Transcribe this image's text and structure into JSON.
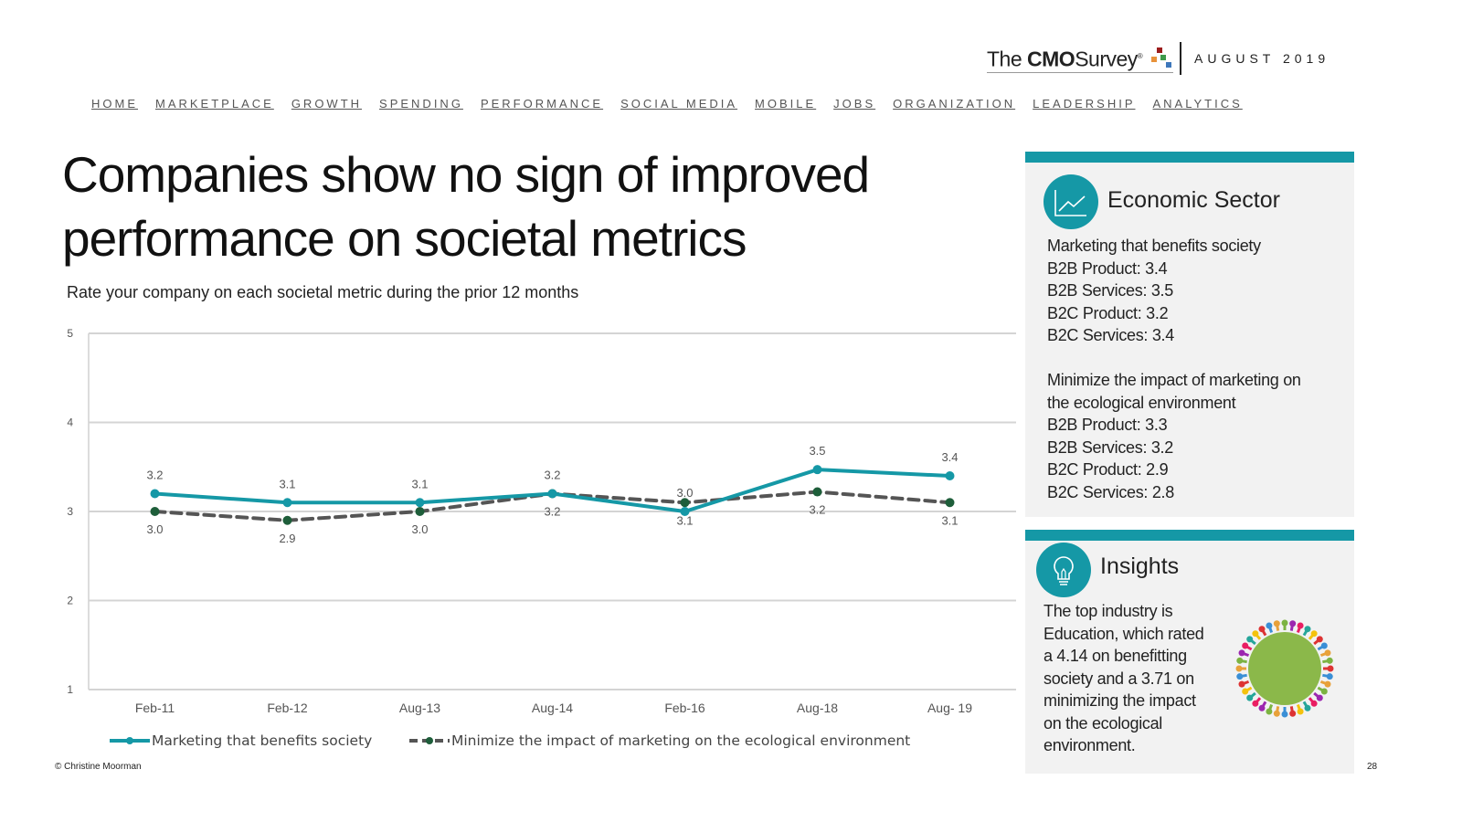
{
  "header": {
    "logo": {
      "the": "The",
      "cmo": "CMO",
      "survey": "Survey",
      "registered": "®"
    },
    "date": "AUGUST 2019",
    "nav": [
      "HOME",
      "MARKETPLACE",
      "GROWTH",
      "SPENDING",
      "PERFORMANCE",
      "SOCIAL MEDIA",
      "MOBILE",
      "JOBS",
      "ORGANIZATION",
      "LEADERSHIP",
      "ANALYTICS"
    ]
  },
  "title": "Companies show no sign of improved performance on societal metrics",
  "subtitle": "Rate your company on each societal metric during the prior 12 months",
  "chart_data": {
    "type": "line",
    "categories": [
      "Feb-11",
      "Feb-12",
      "Aug-13",
      "Aug-14",
      "Feb-16",
      "Aug-18",
      "Aug- 19"
    ],
    "ylim": [
      1,
      5
    ],
    "yticks": [
      "1",
      "2",
      "3",
      "4",
      "5"
    ],
    "grid": true,
    "legend": "bottom",
    "series": [
      {
        "name": "Marketing that benefits society",
        "color": "#1598a6",
        "style": "solid",
        "values": [
          3.2,
          3.1,
          3.1,
          3.2,
          3.0,
          3.47,
          3.4
        ],
        "labels": [
          "3.2",
          "3.1",
          "3.1",
          "3.2",
          "3.0",
          "3.5",
          "3.4"
        ]
      },
      {
        "name": "Minimize the impact of marketing on the ecological environment",
        "color": "#555555",
        "marker_color": "#1e5e3a",
        "style": "dashed",
        "values": [
          3.0,
          2.9,
          3.0,
          3.2,
          3.1,
          3.22,
          3.1
        ],
        "labels": [
          "3.0",
          "2.9",
          "3.0",
          "3.2",
          "3.1",
          "3.2",
          "3.1"
        ]
      }
    ]
  },
  "economic_sector": {
    "icon": "line-chart-icon",
    "heading": "Economic Sector",
    "lines": [
      "Marketing that benefits society",
      "B2B Product: 3.4",
      "B2B Services: 3.5",
      "B2C Product: 3.2",
      "B2C Services: 3.4",
      "",
      "Minimize the impact of marketing on",
      "the ecological environment",
      "B2B Product: 3.3",
      "B2B Services: 3.2",
      "B2C Product: 2.9",
      "B2C Services: 2.8"
    ]
  },
  "insights": {
    "icon": "lightbulb-icon",
    "heading": "Insights",
    "lines": [
      "The top industry is",
      "Education, which rated",
      "a 4.14 on benefitting",
      "society and a 3.71 on",
      "minimizing the impact",
      "on the ecological",
      "environment."
    ]
  },
  "footer": {
    "copyright": "© Christine Moorman",
    "page": "28"
  },
  "colors": {
    "accent": "#1598a6",
    "panel_bg": "#f2f2f2"
  }
}
